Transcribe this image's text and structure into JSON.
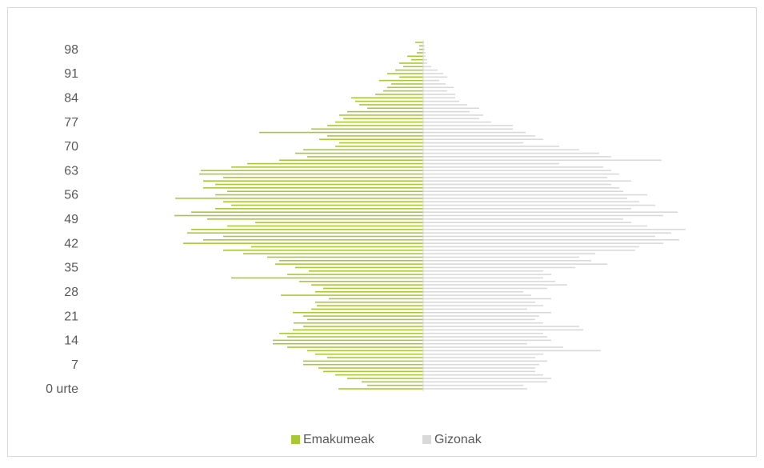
{
  "chart_data": {
    "type": "pyramid",
    "categories": [
      "0 urte",
      null,
      null,
      null,
      null,
      null,
      null,
      "7",
      null,
      null,
      null,
      null,
      null,
      null,
      "14",
      null,
      null,
      null,
      null,
      null,
      null,
      "21",
      null,
      null,
      null,
      null,
      null,
      null,
      "28",
      null,
      null,
      null,
      null,
      null,
      null,
      "35",
      null,
      null,
      null,
      null,
      null,
      null,
      "42",
      null,
      null,
      null,
      null,
      null,
      null,
      "49",
      null,
      null,
      null,
      null,
      null,
      null,
      "56",
      null,
      null,
      null,
      null,
      null,
      null,
      "63",
      null,
      null,
      null,
      null,
      null,
      null,
      "70",
      null,
      null,
      null,
      null,
      null,
      null,
      "77",
      null,
      null,
      null,
      null,
      null,
      null,
      "84",
      null,
      null,
      null,
      null,
      null,
      null,
      "91",
      null,
      null,
      null,
      null,
      null,
      null,
      "98",
      null,
      null
    ],
    "series": [
      {
        "name": "Emakumeak",
        "color": "#a9c934",
        "side": "left",
        "values": [
          106,
          70,
          77,
          95,
          110,
          125,
          131,
          150,
          150,
          120,
          135,
          145,
          170,
          188,
          188,
          170,
          180,
          163,
          150,
          162,
          145,
          150,
          163,
          140,
          133,
          135,
          118,
          178,
          135,
          125,
          140,
          155,
          240,
          170,
          143,
          160,
          185,
          180,
          195,
          225,
          250,
          215,
          300,
          275,
          250,
          295,
          290,
          245,
          210,
          270,
          311,
          290,
          260,
          240,
          250,
          310,
          260,
          245,
          275,
          260,
          275,
          250,
          280,
          278,
          240,
          220,
          180,
          145,
          160,
          150,
          110,
          105,
          130,
          120,
          205,
          140,
          120,
          110,
          100,
          105,
          95,
          70,
          80,
          85,
          90,
          60,
          50,
          45,
          40,
          55,
          30,
          45,
          35,
          25,
          30,
          15,
          20,
          8,
          5,
          5,
          10
        ]
      },
      {
        "name": "Gizonak",
        "color": "#d9d9d9",
        "side": "right",
        "values": [
          130,
          125,
          155,
          160,
          150,
          140,
          140,
          145,
          155,
          140,
          150,
          222,
          175,
          130,
          160,
          155,
          150,
          200,
          195,
          150,
          140,
          145,
          160,
          130,
          150,
          140,
          160,
          135,
          125,
          155,
          180,
          165,
          150,
          160,
          150,
          190,
          230,
          210,
          195,
          215,
          265,
          270,
          300,
          320,
          290,
          310,
          328,
          280,
          260,
          250,
          300,
          318,
          260,
          290,
          270,
          255,
          280,
          250,
          245,
          235,
          260,
          230,
          245,
          235,
          225,
          170,
          298,
          235,
          220,
          195,
          170,
          125,
          150,
          140,
          128,
          112,
          112,
          85,
          70,
          75,
          58,
          70,
          55,
          45,
          40,
          40,
          30,
          38,
          28,
          20,
          30,
          25,
          18,
          10,
          5,
          5,
          3,
          3,
          2,
          2,
          1
        ]
      }
    ],
    "legend": "bottom"
  }
}
